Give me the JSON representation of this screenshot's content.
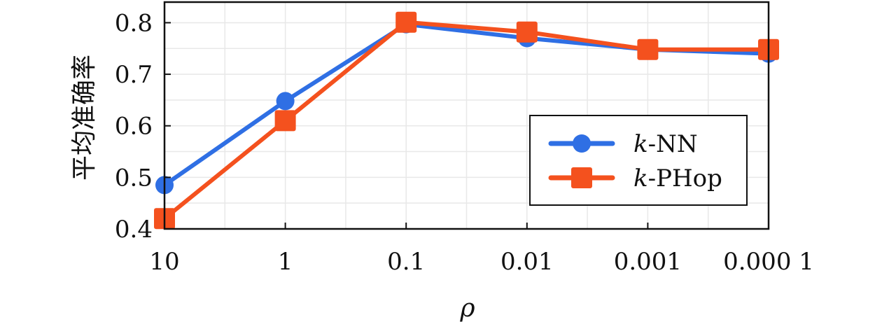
{
  "chart_data": {
    "type": "line",
    "xlabel": "ρ",
    "ylabel": "平均准确率",
    "categories": [
      "10",
      "1",
      "0.1",
      "0.01",
      "0.001",
      "0.000 1"
    ],
    "ylim": [
      0.4,
      0.84
    ],
    "yticks": [
      "0.4",
      "0.5",
      "0.6",
      "0.7",
      "0.8"
    ],
    "grid": true,
    "legend_position": "lower-right",
    "series": [
      {
        "name": "k-NN",
        "name_italic_part": "k",
        "name_rest": "-NN",
        "color": "#2f6fe4",
        "marker": "circle",
        "values": [
          0.485,
          0.648,
          0.797,
          0.77,
          0.748,
          0.74
        ]
      },
      {
        "name": "k-PHop",
        "name_italic_part": "k",
        "name_rest": "-PHop",
        "color": "#f4511e",
        "marker": "square",
        "values": [
          0.42,
          0.61,
          0.801,
          0.782,
          0.748,
          0.748
        ]
      }
    ]
  }
}
